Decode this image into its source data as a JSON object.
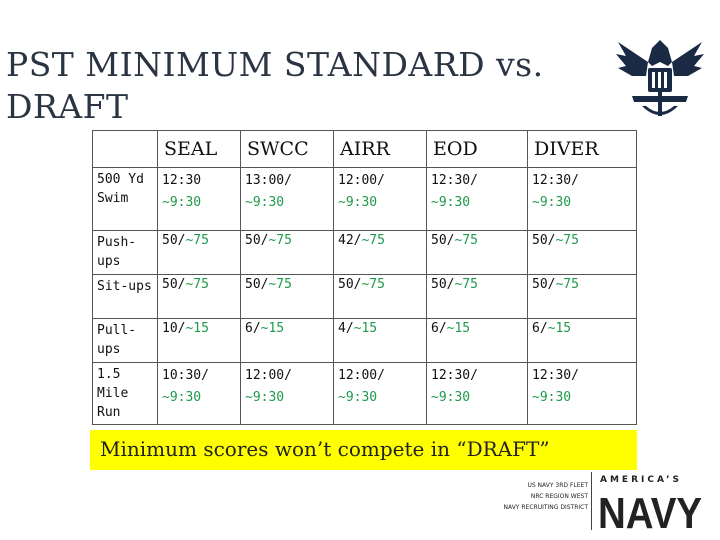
{
  "title": "PST MINIMUM  STANDARD  vs. DRAFT",
  "table": {
    "columns": [
      "",
      "SEAL",
      "SWCC",
      "AIRR",
      "EOD",
      "DIVER"
    ],
    "rows": [
      {
        "label": "500 Yd Swim",
        "cells": [
          [
            "12:30",
            "~9:30"
          ],
          [
            "13:00/",
            "~9:30"
          ],
          [
            "12:00/",
            "~9:30"
          ],
          [
            "12:30/",
            "~9:30"
          ],
          [
            "12:30/",
            "~9:30"
          ]
        ]
      },
      {
        "label": "Push-ups",
        "cells": [
          [
            "50/",
            "~75"
          ],
          [
            "50/",
            "~75"
          ],
          [
            "42/",
            "~75"
          ],
          [
            "50/",
            "~75"
          ],
          [
            "50/",
            "~75"
          ]
        ]
      },
      {
        "label": "Sit-ups",
        "cells": [
          [
            "50/",
            "~75"
          ],
          [
            "50/",
            "~75"
          ],
          [
            "50/",
            "~75"
          ],
          [
            "50/",
            "~75"
          ],
          [
            "50/",
            "~75"
          ]
        ]
      },
      {
        "label": "Pull-ups",
        "cells": [
          [
            "10/",
            "~15"
          ],
          [
            "6/",
            "~15"
          ],
          [
            "4/",
            "~15"
          ],
          [
            "6/",
            "~15"
          ],
          [
            "6/",
            "~15"
          ]
        ]
      },
      {
        "label": "1.5 Mile Run",
        "cells": [
          [
            "10:30/",
            "~9:30"
          ],
          [
            "12:00/",
            "~9:30"
          ],
          [
            "12:00/",
            "~9:30"
          ],
          [
            "12:30/",
            "~9:30"
          ],
          [
            "12:30/",
            "~9:30"
          ]
        ]
      }
    ]
  },
  "banner": "Minimum scores won’t compete in “DRAFT”",
  "footer": {
    "lines": [
      "US NAVY 3RD FLEET",
      "NRC REGION WEST",
      "NAVY RECRUITING DISTRICT"
    ],
    "logo_tag": "AMERICA’S",
    "logo_word": "NAVY"
  },
  "colors": {
    "title": "#2a3442",
    "green_text": "#1f9a4a",
    "banner_bg": "#ffff00"
  },
  "icons": {
    "emblem": "navy-eagle-emblem-icon"
  }
}
